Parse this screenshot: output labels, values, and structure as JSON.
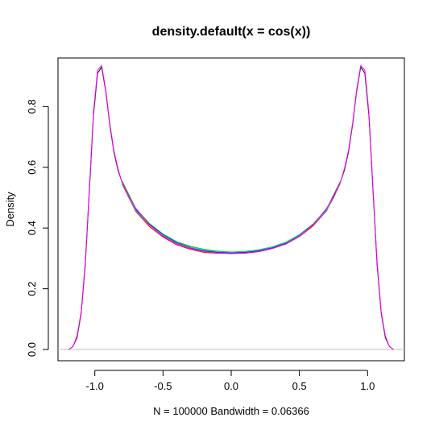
{
  "chart_data": {
    "type": "line",
    "title": "density.default(x = cos(x))",
    "xlabel": "N = 100000   Bandwidth = 0.06366",
    "ylabel": "Density",
    "xlim": [
      -1.27,
      1.27
    ],
    "ylim": [
      -0.037,
      0.96
    ],
    "x_ticks": [
      -1.0,
      -0.5,
      0.0,
      0.5,
      1.0
    ],
    "x_tick_labels": [
      "-1.0",
      "-0.5",
      "0.0",
      "0.5",
      "1.0"
    ],
    "y_ticks": [
      0.0,
      0.2,
      0.4,
      0.6,
      0.8
    ],
    "y_tick_labels": [
      "0.0",
      "0.2",
      "0.4",
      "0.6",
      "0.8"
    ],
    "baseline_y": 0,
    "baseline_color": "#c0c0c0",
    "grid": false,
    "legend": "none",
    "series": [
      {
        "color": "#000000",
        "x": [
          -1.19,
          -1.16,
          -1.13,
          -1.1,
          -1.07,
          -1.04,
          -1.01,
          -0.98,
          -0.95,
          -0.92,
          -0.89,
          -0.86,
          -0.83,
          -0.8,
          -0.75,
          -0.7,
          -0.6,
          -0.5,
          -0.4,
          -0.3,
          -0.2,
          -0.1,
          0.0,
          0.1,
          0.2,
          0.3,
          0.4,
          0.5,
          0.6,
          0.7,
          0.75,
          0.8,
          0.83,
          0.86,
          0.89,
          0.92,
          0.95,
          0.98,
          1.01,
          1.04,
          1.07,
          1.1,
          1.13,
          1.16,
          1.19
        ],
        "y": [
          0.0,
          0.01,
          0.04,
          0.12,
          0.28,
          0.52,
          0.77,
          0.91,
          0.93,
          0.85,
          0.74,
          0.65,
          0.59,
          0.55,
          0.5,
          0.46,
          0.41,
          0.375,
          0.35,
          0.335,
          0.325,
          0.32,
          0.318,
          0.32,
          0.325,
          0.335,
          0.35,
          0.375,
          0.41,
          0.46,
          0.5,
          0.55,
          0.59,
          0.65,
          0.74,
          0.85,
          0.93,
          0.91,
          0.77,
          0.52,
          0.28,
          0.12,
          0.04,
          0.01,
          0.0
        ]
      },
      {
        "color": "#ff0000",
        "x": [
          -0.8,
          -0.7,
          -0.6,
          -0.5,
          -0.4,
          -0.3,
          -0.2,
          -0.1,
          0.0,
          0.1,
          0.2,
          0.3,
          0.4,
          0.5,
          0.6,
          0.7,
          0.8
        ],
        "y": [
          0.545,
          0.455,
          0.405,
          0.37,
          0.345,
          0.33,
          0.32,
          0.317,
          0.316,
          0.317,
          0.322,
          0.332,
          0.347,
          0.372,
          0.407,
          0.457,
          0.547
        ]
      },
      {
        "color": "#00cd00",
        "x": [
          -0.8,
          -0.7,
          -0.6,
          -0.5,
          -0.4,
          -0.3,
          -0.2,
          -0.1,
          0.0,
          0.1,
          0.2,
          0.3,
          0.4,
          0.5,
          0.6,
          0.7,
          0.8
        ],
        "y": [
          0.555,
          0.465,
          0.415,
          0.38,
          0.355,
          0.34,
          0.33,
          0.324,
          0.321,
          0.323,
          0.328,
          0.338,
          0.353,
          0.378,
          0.413,
          0.463,
          0.553
        ]
      },
      {
        "color": "#0000ff",
        "x": [
          -0.8,
          -0.7,
          -0.6,
          -0.5,
          -0.4,
          -0.3,
          -0.2,
          -0.1,
          0.0,
          0.1,
          0.2,
          0.3,
          0.4,
          0.5,
          0.6,
          0.7,
          0.8
        ],
        "y": [
          0.55,
          0.46,
          0.412,
          0.378,
          0.352,
          0.337,
          0.326,
          0.321,
          0.319,
          0.321,
          0.326,
          0.336,
          0.351,
          0.377,
          0.411,
          0.461,
          0.551
        ]
      },
      {
        "color": "#00cdcd",
        "x": [
          -0.8,
          -0.7,
          -0.6,
          -0.5,
          -0.4,
          -0.3,
          -0.2,
          -0.1,
          0.0,
          0.1,
          0.2,
          0.3,
          0.4,
          0.5,
          0.6,
          0.7,
          0.8
        ],
        "y": [
          0.548,
          0.458,
          0.41,
          0.376,
          0.35,
          0.336,
          0.327,
          0.322,
          0.32,
          0.322,
          0.327,
          0.337,
          0.352,
          0.376,
          0.41,
          0.459,
          0.549
        ]
      },
      {
        "color": "#ff00ff",
        "x": [
          -1.19,
          -1.16,
          -1.13,
          -1.1,
          -1.07,
          -1.04,
          -1.01,
          -0.98,
          -0.95,
          -0.92,
          -0.89,
          -0.86,
          -0.83,
          -0.8,
          -0.75,
          -0.7,
          -0.6,
          -0.5,
          -0.4,
          -0.3,
          -0.2,
          -0.1,
          0.0,
          0.1,
          0.2,
          0.3,
          0.4,
          0.5,
          0.6,
          0.7,
          0.75,
          0.8,
          0.83,
          0.86,
          0.89,
          0.92,
          0.95,
          0.98,
          1.01,
          1.04,
          1.07,
          1.1,
          1.13,
          1.16,
          1.19
        ],
        "y": [
          0.0,
          0.01,
          0.045,
          0.125,
          0.29,
          0.53,
          0.78,
          0.92,
          0.935,
          0.855,
          0.745,
          0.655,
          0.595,
          0.55,
          0.505,
          0.465,
          0.41,
          0.373,
          0.348,
          0.333,
          0.323,
          0.318,
          0.316,
          0.318,
          0.323,
          0.333,
          0.348,
          0.373,
          0.41,
          0.465,
          0.505,
          0.55,
          0.595,
          0.655,
          0.745,
          0.855,
          0.935,
          0.92,
          0.78,
          0.53,
          0.29,
          0.125,
          0.045,
          0.01,
          0.0
        ]
      }
    ]
  }
}
